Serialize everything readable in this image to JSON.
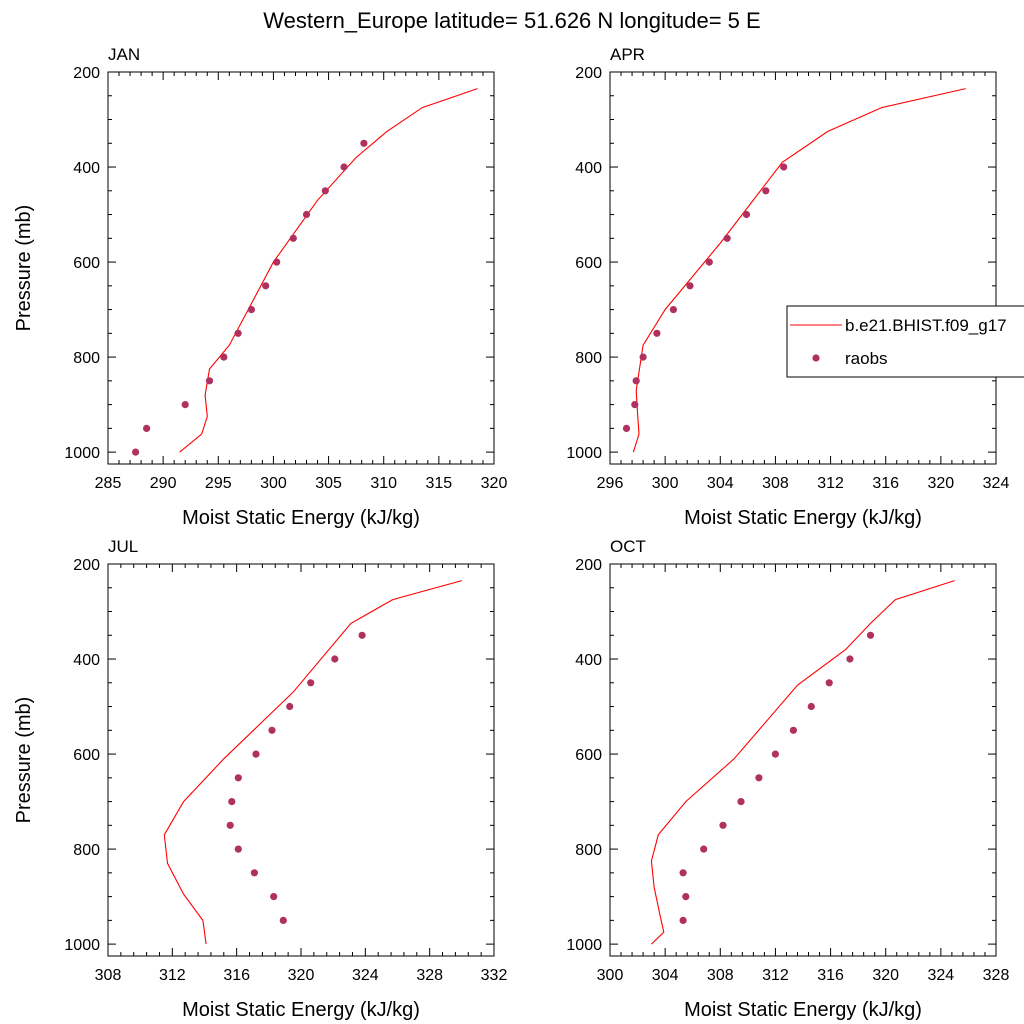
{
  "title": "Western_Europe  latitude= 51.626 N longitude= 5 E",
  "colors": {
    "model": "#ff0000",
    "obs": "#b03060"
  },
  "legend": {
    "panel": 1,
    "location": "right, partially clipped",
    "model_label": "b.e21.BHIST.f09_g17",
    "obs_label": "raobs"
  },
  "chart_data": [
    {
      "type": "line",
      "panel_title": "JAN",
      "xlabel": "Moist Static Energy (kJ/kg)",
      "ylabel": "Pressure (mb)",
      "xlim": [
        285,
        320
      ],
      "ylim": [
        1025,
        200
      ],
      "y_reversed": true,
      "x_ticks": [
        "285",
        "290",
        "295",
        "300",
        "305",
        "310",
        "315",
        "320"
      ],
      "y_ticks": [
        "200",
        "400",
        "600",
        "800",
        "1000"
      ],
      "series": [
        {
          "name": "b.e21.BHIST.f09_g17",
          "kind": "line",
          "x": [
            291.5,
            293.5,
            294.0,
            293.8,
            294.2,
            296.0,
            300.0,
            304.0,
            307.5,
            310.3,
            313.5,
            318.5
          ],
          "y": [
            1000,
            962,
            925,
            880,
            825,
            775,
            600,
            470,
            380,
            325,
            275,
            235
          ]
        },
        {
          "name": "raobs",
          "kind": "marker",
          "x": [
            287.5,
            288.5,
            292.0,
            294.2,
            295.5,
            296.8,
            298.0,
            299.3,
            300.3,
            301.8,
            303.0,
            304.7,
            306.4,
            308.2
          ],
          "y": [
            1000,
            950,
            900,
            850,
            800,
            750,
            700,
            650,
            600,
            550,
            500,
            450,
            400,
            350
          ]
        }
      ]
    },
    {
      "type": "line",
      "panel_title": "APR",
      "xlabel": "Moist Static Energy (kJ/kg)",
      "ylabel": "",
      "xlim": [
        296,
        324
      ],
      "ylim": [
        1025,
        200
      ],
      "y_reversed": true,
      "x_ticks": [
        "296",
        "300",
        "304",
        "308",
        "312",
        "316",
        "320",
        "324"
      ],
      "y_ticks": [
        "200",
        "400",
        "600",
        "800",
        "1000"
      ],
      "series": [
        {
          "name": "b.e21.BHIST.f09_g17",
          "kind": "line",
          "x": [
            297.7,
            298.1,
            298.0,
            297.9,
            298.4,
            300.0,
            304.0,
            308.5,
            311.8,
            315.7,
            321.8
          ],
          "y": [
            1000,
            962,
            920,
            870,
            775,
            700,
            560,
            390,
            325,
            275,
            235
          ]
        },
        {
          "name": "raobs",
          "kind": "marker",
          "x": [
            297.2,
            297.8,
            297.9,
            298.4,
            299.4,
            300.6,
            301.8,
            303.2,
            304.5,
            305.9,
            307.3,
            308.6
          ],
          "y": [
            950,
            900,
            850,
            800,
            750,
            700,
            650,
            600,
            550,
            500,
            450,
            400
          ]
        }
      ]
    },
    {
      "type": "line",
      "panel_title": "JUL",
      "xlabel": "Moist Static Energy (kJ/kg)",
      "ylabel": "Pressure (mb)",
      "xlim": [
        308,
        332
      ],
      "ylim": [
        1025,
        200
      ],
      "y_reversed": true,
      "x_ticks": [
        "308",
        "312",
        "316",
        "320",
        "324",
        "328",
        "332"
      ],
      "y_ticks": [
        "200",
        "400",
        "600",
        "800",
        "1000"
      ],
      "series": [
        {
          "name": "b.e21.BHIST.f09_g17",
          "kind": "line",
          "x": [
            314.1,
            313.9,
            312.7,
            311.7,
            311.5,
            312.7,
            315.2,
            319.5,
            323.1,
            325.7,
            330.0
          ],
          "y": [
            1000,
            950,
            895,
            830,
            770,
            700,
            610,
            470,
            325,
            275,
            235
          ]
        },
        {
          "name": "raobs",
          "kind": "marker",
          "x": [
            318.9,
            318.3,
            317.1,
            316.1,
            315.6,
            315.7,
            316.1,
            317.2,
            318.2,
            319.3,
            320.6,
            322.1,
            323.8
          ],
          "y": [
            950,
            900,
            850,
            800,
            750,
            700,
            650,
            600,
            550,
            500,
            450,
            400,
            350
          ]
        }
      ]
    },
    {
      "type": "line",
      "panel_title": "OCT",
      "xlabel": "Moist Static Energy (kJ/kg)",
      "ylabel": "",
      "xlim": [
        300,
        328
      ],
      "ylim": [
        1025,
        200
      ],
      "y_reversed": true,
      "x_ticks": [
        "300",
        "304",
        "308",
        "312",
        "316",
        "320",
        "324",
        "328"
      ],
      "y_ticks": [
        "200",
        "400",
        "600",
        "800",
        "1000"
      ],
      "series": [
        {
          "name": "b.e21.BHIST.f09_g17",
          "kind": "line",
          "x": [
            303.0,
            303.9,
            303.6,
            303.2,
            303.0,
            303.5,
            305.5,
            309.0,
            313.6,
            317.1,
            318.9,
            320.7,
            325.0
          ],
          "y": [
            1000,
            975,
            935,
            880,
            825,
            770,
            700,
            610,
            455,
            380,
            325,
            275,
            235
          ]
        },
        {
          "name": "raobs",
          "kind": "marker",
          "x": [
            305.3,
            305.5,
            305.3,
            306.8,
            308.2,
            309.5,
            310.8,
            312.0,
            313.3,
            314.6,
            315.9,
            317.4,
            318.9
          ],
          "y": [
            950,
            900,
            850,
            800,
            750,
            700,
            650,
            600,
            550,
            500,
            450,
            400,
            350
          ]
        }
      ]
    }
  ]
}
